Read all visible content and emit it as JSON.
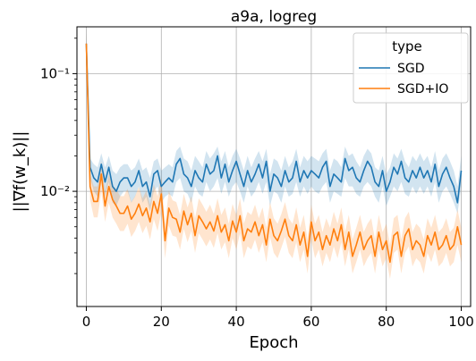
{
  "chart_data": {
    "type": "line",
    "title": "a9a, logreg",
    "xlabel": "Epoch",
    "ylabel": "||∇f(w_k)||",
    "xlim": [
      -2.5,
      102.5
    ],
    "ylim": [
      0.00105,
      0.25
    ],
    "y_scale": "log",
    "grid": true,
    "x_ticks": [
      0,
      20,
      40,
      60,
      80,
      100
    ],
    "x_tick_labels": [
      "0",
      "20",
      "40",
      "60",
      "80",
      "100"
    ],
    "y_ticks": [
      0.01,
      0.1
    ],
    "y_tick_labels": [
      "10⁻²",
      "10⁻¹"
    ],
    "legend": {
      "title": "type",
      "position": "top-right"
    },
    "series": [
      {
        "name": "SGD",
        "color": "#1f77b4",
        "x": [
          0,
          1,
          2,
          3,
          4,
          5,
          6,
          7,
          8,
          9,
          10,
          11,
          12,
          13,
          14,
          15,
          16,
          17,
          18,
          19,
          20,
          21,
          22,
          23,
          24,
          25,
          26,
          27,
          28,
          29,
          30,
          31,
          32,
          33,
          34,
          35,
          36,
          37,
          38,
          39,
          40,
          41,
          42,
          43,
          44,
          45,
          46,
          47,
          48,
          49,
          50,
          51,
          52,
          53,
          54,
          55,
          56,
          57,
          58,
          59,
          60,
          61,
          62,
          63,
          64,
          65,
          66,
          67,
          68,
          69,
          70,
          71,
          72,
          73,
          74,
          75,
          76,
          77,
          78,
          79,
          80,
          81,
          82,
          83,
          84,
          85,
          86,
          87,
          88,
          89,
          90,
          91,
          92,
          93,
          94,
          95,
          96,
          97,
          98,
          99,
          100
        ],
        "values": [
          0.18,
          0.016,
          0.013,
          0.012,
          0.017,
          0.012,
          0.016,
          0.011,
          0.01,
          0.012,
          0.013,
          0.013,
          0.011,
          0.012,
          0.015,
          0.011,
          0.012,
          0.009,
          0.014,
          0.015,
          0.011,
          0.012,
          0.013,
          0.012,
          0.017,
          0.019,
          0.014,
          0.013,
          0.011,
          0.015,
          0.013,
          0.012,
          0.017,
          0.014,
          0.015,
          0.02,
          0.013,
          0.017,
          0.012,
          0.015,
          0.018,
          0.014,
          0.011,
          0.015,
          0.012,
          0.014,
          0.017,
          0.013,
          0.018,
          0.01,
          0.014,
          0.013,
          0.011,
          0.015,
          0.012,
          0.013,
          0.018,
          0.012,
          0.015,
          0.013,
          0.015,
          0.014,
          0.013,
          0.016,
          0.018,
          0.011,
          0.014,
          0.013,
          0.012,
          0.019,
          0.015,
          0.016,
          0.013,
          0.012,
          0.015,
          0.018,
          0.016,
          0.012,
          0.011,
          0.015,
          0.01,
          0.012,
          0.016,
          0.014,
          0.018,
          0.013,
          0.012,
          0.015,
          0.013,
          0.016,
          0.013,
          0.015,
          0.012,
          0.017,
          0.011,
          0.014,
          0.016,
          0.013,
          0.011,
          0.008,
          0.015
        ],
        "lower": [
          0.14,
          0.013,
          0.01,
          0.009,
          0.013,
          0.009,
          0.012,
          0.008,
          0.0075,
          0.009,
          0.01,
          0.01,
          0.008,
          0.009,
          0.011,
          0.008,
          0.009,
          0.0068,
          0.01,
          0.011,
          0.008,
          0.009,
          0.0095,
          0.009,
          0.012,
          0.013,
          0.01,
          0.0095,
          0.008,
          0.011,
          0.0095,
          0.009,
          0.012,
          0.01,
          0.011,
          0.013,
          0.0095,
          0.012,
          0.009,
          0.011,
          0.012,
          0.01,
          0.008,
          0.011,
          0.009,
          0.01,
          0.012,
          0.0095,
          0.012,
          0.0075,
          0.01,
          0.0095,
          0.008,
          0.011,
          0.009,
          0.0095,
          0.012,
          0.009,
          0.011,
          0.0095,
          0.011,
          0.01,
          0.0095,
          0.011,
          0.012,
          0.008,
          0.01,
          0.0095,
          0.009,
          0.013,
          0.011,
          0.011,
          0.0095,
          0.009,
          0.011,
          0.012,
          0.011,
          0.009,
          0.008,
          0.011,
          0.0075,
          0.009,
          0.011,
          0.01,
          0.012,
          0.0095,
          0.009,
          0.011,
          0.0095,
          0.011,
          0.0095,
          0.011,
          0.009,
          0.012,
          0.008,
          0.01,
          0.011,
          0.0095,
          0.008,
          0.0065,
          0.011
        ],
        "upper": [
          0.22,
          0.019,
          0.017,
          0.016,
          0.021,
          0.016,
          0.02,
          0.015,
          0.014,
          0.016,
          0.017,
          0.017,
          0.015,
          0.016,
          0.019,
          0.015,
          0.016,
          0.013,
          0.018,
          0.019,
          0.015,
          0.016,
          0.017,
          0.016,
          0.022,
          0.024,
          0.019,
          0.018,
          0.015,
          0.02,
          0.018,
          0.016,
          0.022,
          0.019,
          0.021,
          0.024,
          0.018,
          0.022,
          0.016,
          0.02,
          0.023,
          0.019,
          0.015,
          0.02,
          0.016,
          0.019,
          0.022,
          0.018,
          0.023,
          0.014,
          0.019,
          0.018,
          0.015,
          0.02,
          0.016,
          0.018,
          0.023,
          0.016,
          0.02,
          0.018,
          0.02,
          0.019,
          0.018,
          0.021,
          0.023,
          0.015,
          0.019,
          0.018,
          0.016,
          0.024,
          0.02,
          0.021,
          0.018,
          0.016,
          0.02,
          0.023,
          0.021,
          0.016,
          0.015,
          0.02,
          0.014,
          0.016,
          0.021,
          0.019,
          0.023,
          0.018,
          0.016,
          0.02,
          0.018,
          0.021,
          0.018,
          0.02,
          0.016,
          0.022,
          0.015,
          0.019,
          0.021,
          0.018,
          0.015,
          0.011,
          0.02
        ]
      },
      {
        "name": "SGD+IO",
        "color": "#ff7f0e",
        "x": [
          0,
          1,
          2,
          3,
          4,
          5,
          6,
          7,
          8,
          9,
          10,
          11,
          12,
          13,
          14,
          15,
          16,
          17,
          18,
          19,
          20,
          21,
          22,
          23,
          24,
          25,
          26,
          27,
          28,
          29,
          30,
          31,
          32,
          33,
          34,
          35,
          36,
          37,
          38,
          39,
          40,
          41,
          42,
          43,
          44,
          45,
          46,
          47,
          48,
          49,
          50,
          51,
          52,
          53,
          54,
          55,
          56,
          57,
          58,
          59,
          60,
          61,
          62,
          63,
          64,
          65,
          66,
          67,
          68,
          69,
          70,
          71,
          72,
          73,
          74,
          75,
          76,
          77,
          78,
          79,
          80,
          81,
          82,
          83,
          84,
          85,
          86,
          87,
          88,
          89,
          90,
          91,
          92,
          93,
          94,
          95,
          96,
          97,
          98,
          99,
          100
        ],
        "values": [
          0.18,
          0.011,
          0.0082,
          0.0082,
          0.014,
          0.0075,
          0.011,
          0.0085,
          0.0075,
          0.0065,
          0.0065,
          0.0075,
          0.0058,
          0.0065,
          0.0078,
          0.0062,
          0.0072,
          0.0055,
          0.0082,
          0.0065,
          0.0095,
          0.0038,
          0.0072,
          0.006,
          0.0058,
          0.0045,
          0.0068,
          0.0052,
          0.0065,
          0.0042,
          0.0062,
          0.0055,
          0.0048,
          0.0055,
          0.0046,
          0.0062,
          0.0045,
          0.0052,
          0.0038,
          0.0056,
          0.0045,
          0.0062,
          0.0038,
          0.0048,
          0.0045,
          0.0055,
          0.0042,
          0.0052,
          0.0035,
          0.0058,
          0.0042,
          0.0038,
          0.0046,
          0.0058,
          0.0042,
          0.0038,
          0.0052,
          0.0035,
          0.0045,
          0.0028,
          0.0055,
          0.0038,
          0.0045,
          0.0032,
          0.0042,
          0.0035,
          0.0048,
          0.0038,
          0.0052,
          0.0032,
          0.0045,
          0.0028,
          0.0035,
          0.0045,
          0.0032,
          0.0038,
          0.0042,
          0.0028,
          0.0045,
          0.0032,
          0.0038,
          0.0025,
          0.0042,
          0.0045,
          0.0028,
          0.0042,
          0.0048,
          0.0032,
          0.0038,
          0.0035,
          0.0028,
          0.0042,
          0.0035,
          0.0045,
          0.0032,
          0.0035,
          0.0042,
          0.0032,
          0.0035,
          0.005,
          0.0035
        ],
        "lower": [
          0.14,
          0.0085,
          0.006,
          0.006,
          0.01,
          0.0055,
          0.008,
          0.006,
          0.0053,
          0.0046,
          0.0046,
          0.0053,
          0.0041,
          0.0046,
          0.0055,
          0.0044,
          0.0051,
          0.0039,
          0.0058,
          0.0046,
          0.0067,
          0.0027,
          0.0051,
          0.0042,
          0.0041,
          0.0032,
          0.0048,
          0.0037,
          0.0046,
          0.003,
          0.0044,
          0.0039,
          0.0034,
          0.0039,
          0.0033,
          0.0044,
          0.0032,
          0.0037,
          0.0027,
          0.004,
          0.0032,
          0.0044,
          0.0027,
          0.0034,
          0.0032,
          0.0039,
          0.003,
          0.0037,
          0.0025,
          0.0041,
          0.003,
          0.0027,
          0.0033,
          0.0041,
          0.003,
          0.0027,
          0.0037,
          0.0025,
          0.0032,
          0.002,
          0.0039,
          0.0027,
          0.0032,
          0.0023,
          0.003,
          0.0025,
          0.0034,
          0.0027,
          0.0037,
          0.0023,
          0.0032,
          0.002,
          0.0025,
          0.0032,
          0.0023,
          0.0027,
          0.003,
          0.002,
          0.0032,
          0.0023,
          0.0027,
          0.0018,
          0.003,
          0.0032,
          0.002,
          0.003,
          0.0034,
          0.0023,
          0.0027,
          0.0025,
          0.002,
          0.003,
          0.0025,
          0.0032,
          0.0023,
          0.0025,
          0.003,
          0.0023,
          0.0025,
          0.0035,
          0.0025
        ],
        "upper": [
          0.22,
          0.014,
          0.011,
          0.011,
          0.018,
          0.01,
          0.014,
          0.011,
          0.0105,
          0.0091,
          0.0091,
          0.0105,
          0.0081,
          0.0091,
          0.0109,
          0.0087,
          0.0101,
          0.0077,
          0.0115,
          0.0091,
          0.0133,
          0.0053,
          0.0101,
          0.0084,
          0.0081,
          0.0063,
          0.0095,
          0.0073,
          0.0091,
          0.0059,
          0.0087,
          0.0077,
          0.0067,
          0.0077,
          0.0064,
          0.0087,
          0.0063,
          0.0073,
          0.0053,
          0.0078,
          0.0063,
          0.0087,
          0.0053,
          0.0067,
          0.0063,
          0.0077,
          0.0059,
          0.0073,
          0.0049,
          0.0081,
          0.0059,
          0.0053,
          0.0064,
          0.0081,
          0.0059,
          0.0053,
          0.0073,
          0.0049,
          0.0063,
          0.0039,
          0.0077,
          0.0053,
          0.0063,
          0.0045,
          0.0059,
          0.0049,
          0.0067,
          0.0053,
          0.0073,
          0.0045,
          0.0063,
          0.0039,
          0.0049,
          0.0063,
          0.0045,
          0.0053,
          0.0059,
          0.0039,
          0.0063,
          0.0045,
          0.0053,
          0.0035,
          0.0059,
          0.0063,
          0.0039,
          0.0059,
          0.0067,
          0.0045,
          0.0053,
          0.0049,
          0.0039,
          0.0059,
          0.0049,
          0.0063,
          0.0045,
          0.0049,
          0.0059,
          0.0045,
          0.0049,
          0.007,
          0.0049
        ]
      }
    ]
  }
}
